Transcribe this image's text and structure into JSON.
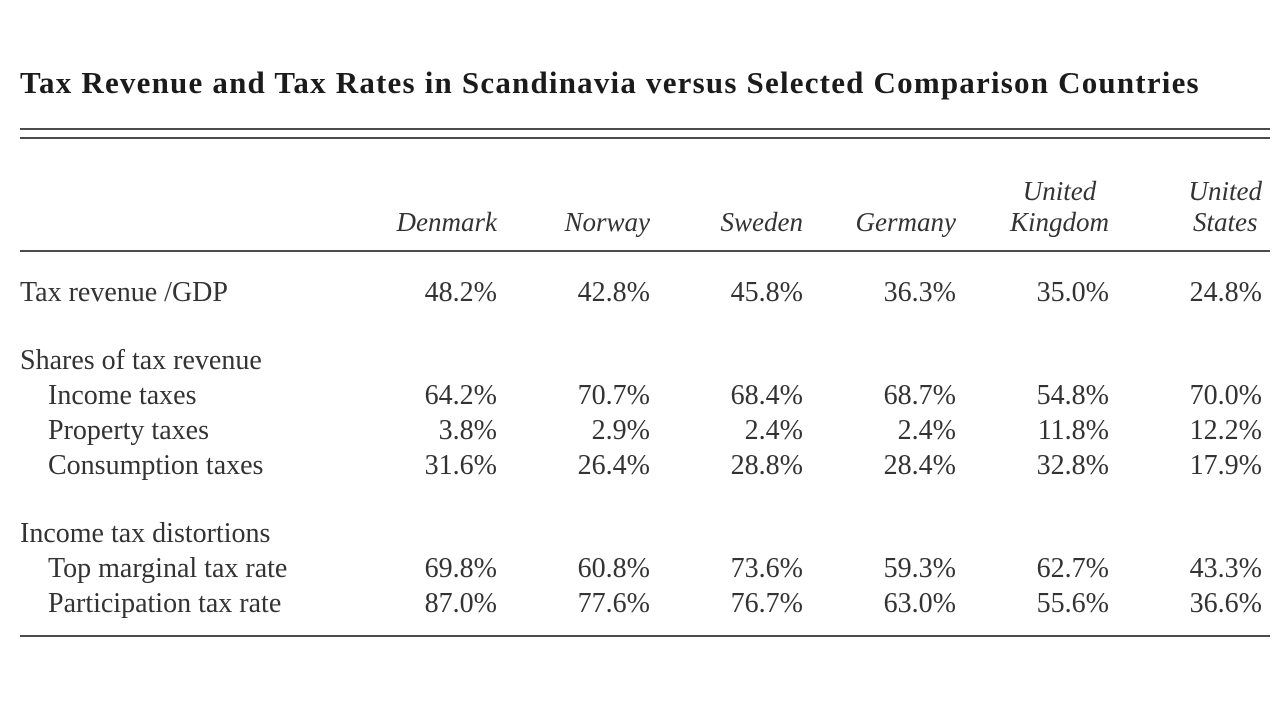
{
  "page": {
    "title": "Tax Revenue and Tax Rates in Scandinavia versus Selected Comparison Countries"
  },
  "colors": {
    "background": "#ffffff",
    "title_text": "#1b1b1b",
    "body_text": "#333333",
    "rule": "#4c4c4c"
  },
  "table": {
    "columns": [
      {
        "top": "",
        "bottom": "Denmark"
      },
      {
        "top": "",
        "bottom": "Norway"
      },
      {
        "top": "",
        "bottom": "Sweden"
      },
      {
        "top": "",
        "bottom": "Germany"
      },
      {
        "top": "United",
        "bottom": "Kingdom"
      },
      {
        "top": "United",
        "bottom": "States"
      }
    ],
    "rows": [
      {
        "label": "Tax revenue /GDP",
        "section": false,
        "indent": false,
        "values": [
          "48.2%",
          "42.8%",
          "45.8%",
          "36.3%",
          "35.0%",
          "24.8%"
        ]
      },
      {
        "label": "Shares of tax revenue",
        "section": true,
        "indent": false,
        "values": []
      },
      {
        "label": "Income taxes",
        "section": false,
        "indent": true,
        "values": [
          "64.2%",
          "70.7%",
          "68.4%",
          "68.7%",
          "54.8%",
          "70.0%"
        ]
      },
      {
        "label": "Property taxes",
        "section": false,
        "indent": true,
        "values": [
          "3.8%",
          "2.9%",
          "2.4%",
          "2.4%",
          "11.8%",
          "12.2%"
        ]
      },
      {
        "label": "Consumption taxes",
        "section": false,
        "indent": true,
        "values": [
          "31.6%",
          "26.4%",
          "28.8%",
          "28.4%",
          "32.8%",
          "17.9%"
        ]
      },
      {
        "label": "Income tax distortions",
        "section": true,
        "indent": false,
        "values": []
      },
      {
        "label": "Top marginal tax rate",
        "section": false,
        "indent": true,
        "values": [
          "69.8%",
          "60.8%",
          "73.6%",
          "59.3%",
          "62.7%",
          "43.3%"
        ]
      },
      {
        "label": "Participation tax rate",
        "section": false,
        "indent": true,
        "values": [
          "87.0%",
          "77.6%",
          "76.7%",
          "63.0%",
          "55.6%",
          "36.6%"
        ]
      }
    ]
  }
}
